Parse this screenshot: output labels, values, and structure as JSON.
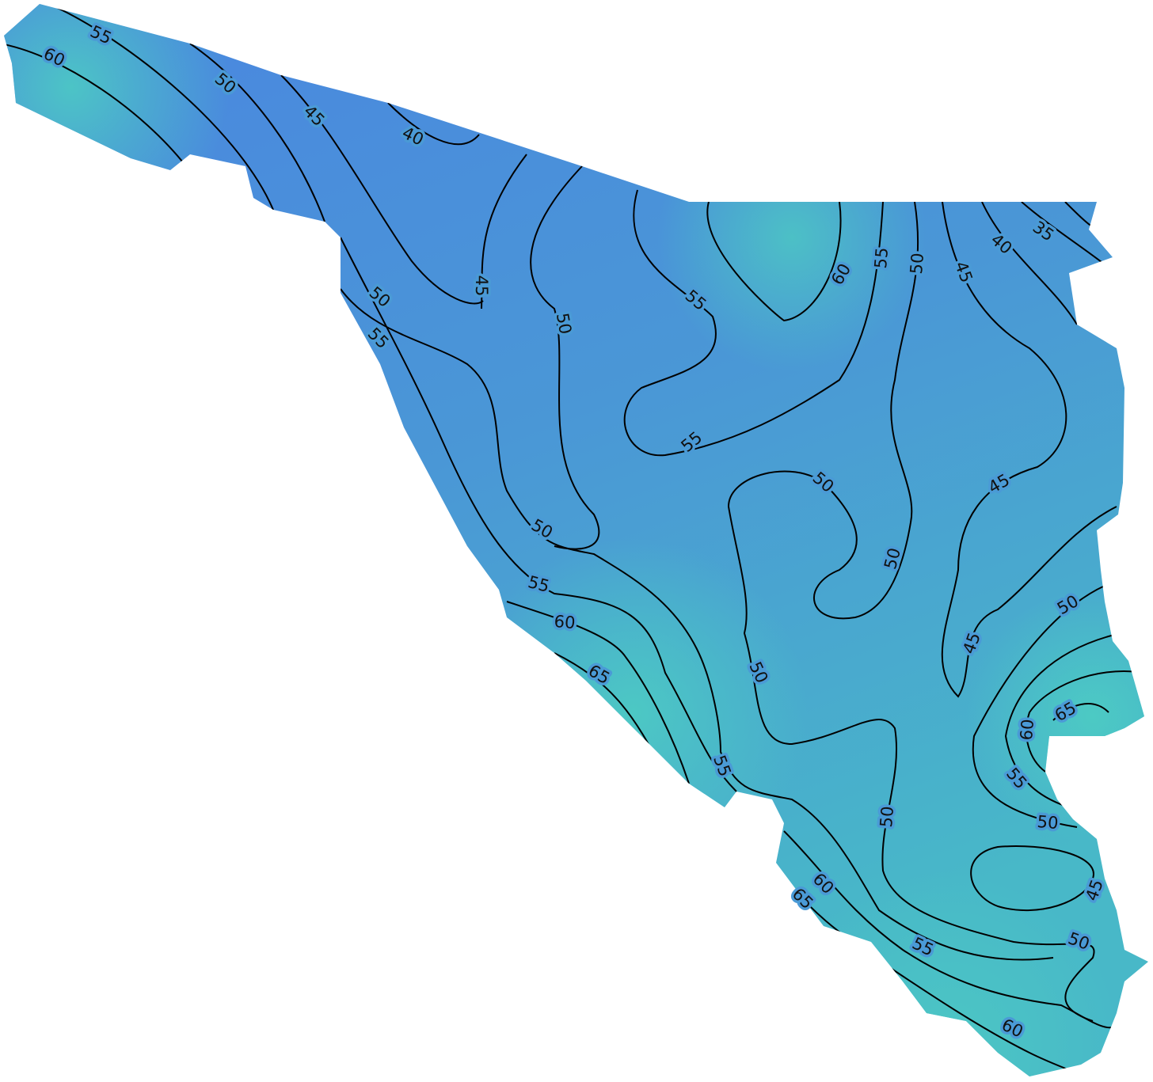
{
  "contour_labels": [
    "55",
    "60",
    "50",
    "45",
    "40",
    "45",
    "50",
    "55",
    "60",
    "55",
    "50",
    "45",
    "40",
    "35",
    "50",
    "55",
    "55",
    "50",
    "45",
    "50",
    "50",
    "55",
    "50",
    "60",
    "45",
    "65",
    "50",
    "65",
    "60",
    "55",
    "55",
    "50",
    "50",
    "60",
    "45",
    "65",
    "50",
    "55",
    "60"
  ]
}
